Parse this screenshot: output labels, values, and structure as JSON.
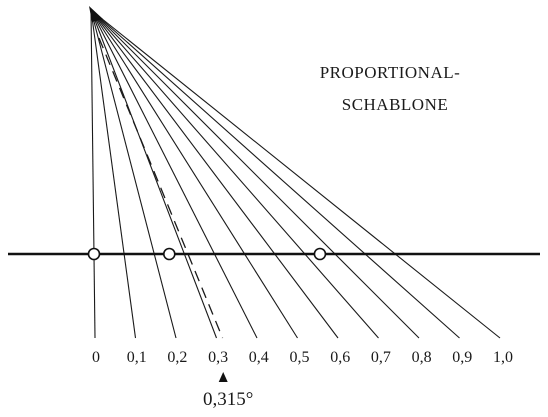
{
  "title_lines": [
    "PROPORTIONAL-",
    "SCHABLONE"
  ],
  "ticks": [
    {
      "value": 0.0,
      "label": "0"
    },
    {
      "value": 0.1,
      "label": "0,1"
    },
    {
      "value": 0.2,
      "label": "0,2"
    },
    {
      "value": 0.3,
      "label": "0,3"
    },
    {
      "value": 0.4,
      "label": "0,4"
    },
    {
      "value": 0.5,
      "label": "0,5"
    },
    {
      "value": 0.6,
      "label": "0,6"
    },
    {
      "value": 0.7,
      "label": "0,7"
    },
    {
      "value": 0.8,
      "label": "0,8"
    },
    {
      "value": 0.9,
      "label": "0,9"
    },
    {
      "value": 1.0,
      "label": "1,0"
    }
  ],
  "highlighted_ray": {
    "value": 0.315,
    "label": "0,315°"
  },
  "measurement_points": [
    0.0,
    0.25,
    0.75
  ]
}
